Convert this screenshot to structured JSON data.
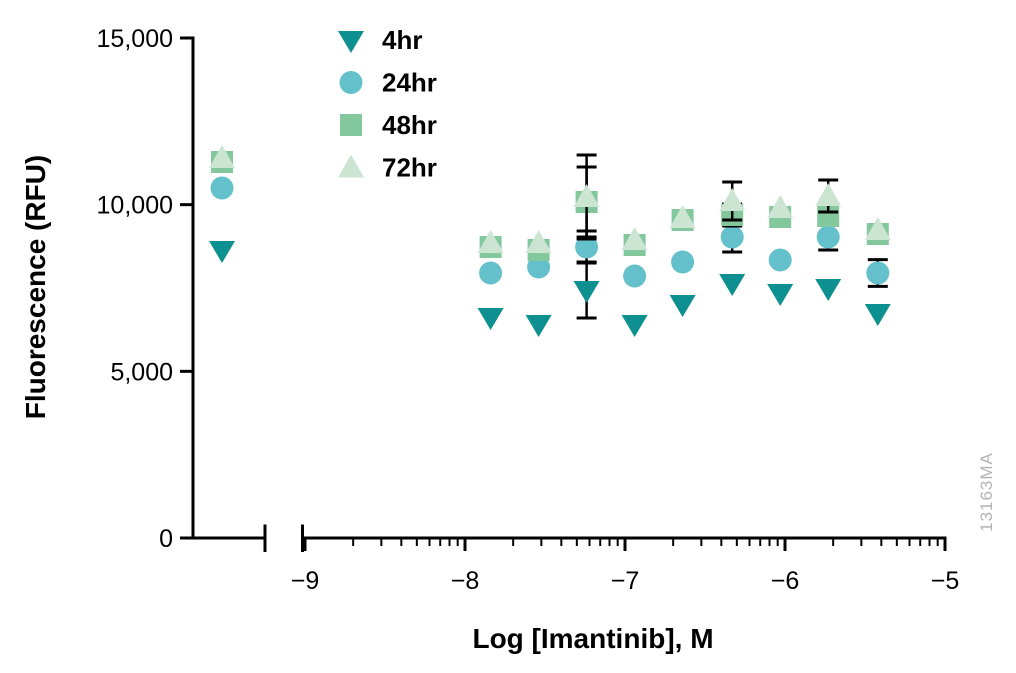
{
  "watermark": "13163MA",
  "colors": {
    "axis": "#000000",
    "error_bar": "#000000",
    "watermark": "#B3B3B3",
    "background": "#FFFFFF"
  },
  "chart_data": {
    "type": "scatter",
    "title": "",
    "xlabel": "Log [Imantinib], M",
    "ylabel": "Fluorescence (RFU)",
    "ylim": [
      0,
      15000
    ],
    "yticks": [
      0,
      5000,
      10000,
      15000
    ],
    "ytick_labels": [
      "0",
      "5,000",
      "10,000",
      "15,000"
    ],
    "xticks": [
      -9,
      -8,
      -7,
      -6,
      -5
    ],
    "xtick_labels": [
      "−9",
      "−8",
      "−7",
      "−6",
      "−5"
    ],
    "x_scale": "log10",
    "x_axis_break": true,
    "x_note": "leftmost cluster is an untreated/control column plotted left of the axis break",
    "grid": false,
    "legend_position": "top-left inside",
    "x": [
      -7.84,
      -7.54,
      -7.24,
      -6.94,
      -6.64,
      -6.33,
      -6.03,
      -5.73,
      -5.42
    ],
    "series": [
      {
        "name": "4hr",
        "marker": "triangle-down",
        "color": "#0E8F90",
        "control_value": 8640,
        "values": [
          6630,
          6420,
          7440,
          6420,
          7020,
          7650,
          7350,
          7500,
          6750
        ],
        "errors": [
          null,
          null,
          840,
          null,
          null,
          null,
          null,
          null,
          null
        ]
      },
      {
        "name": "24hr",
        "marker": "circle",
        "color": "#64C1CB",
        "control_value": 10500,
        "values": [
          7950,
          8130,
          8730,
          7860,
          8280,
          9030,
          8340,
          9030,
          7950
        ],
        "errors": [
          null,
          null,
          480,
          null,
          null,
          450,
          null,
          390,
          400
        ]
      },
      {
        "name": "48hr",
        "marker": "square",
        "color": "#83C79D",
        "control_value": 11280,
        "values": [
          8730,
          8640,
          10080,
          8790,
          9540,
          9690,
          9630,
          9660,
          9120
        ],
        "errors": [
          null,
          null,
          1050,
          null,
          null,
          330,
          null,
          null,
          null
        ]
      },
      {
        "name": "72hr",
        "marker": "triangle-up",
        "color": "#CBE5D2",
        "control_value": 11400,
        "values": [
          8850,
          8850,
          10230,
          8940,
          9600,
          10110,
          9900,
          10260,
          9240
        ],
        "errors": [
          null,
          null,
          1260,
          null,
          null,
          570,
          null,
          480,
          null
        ]
      }
    ]
  }
}
